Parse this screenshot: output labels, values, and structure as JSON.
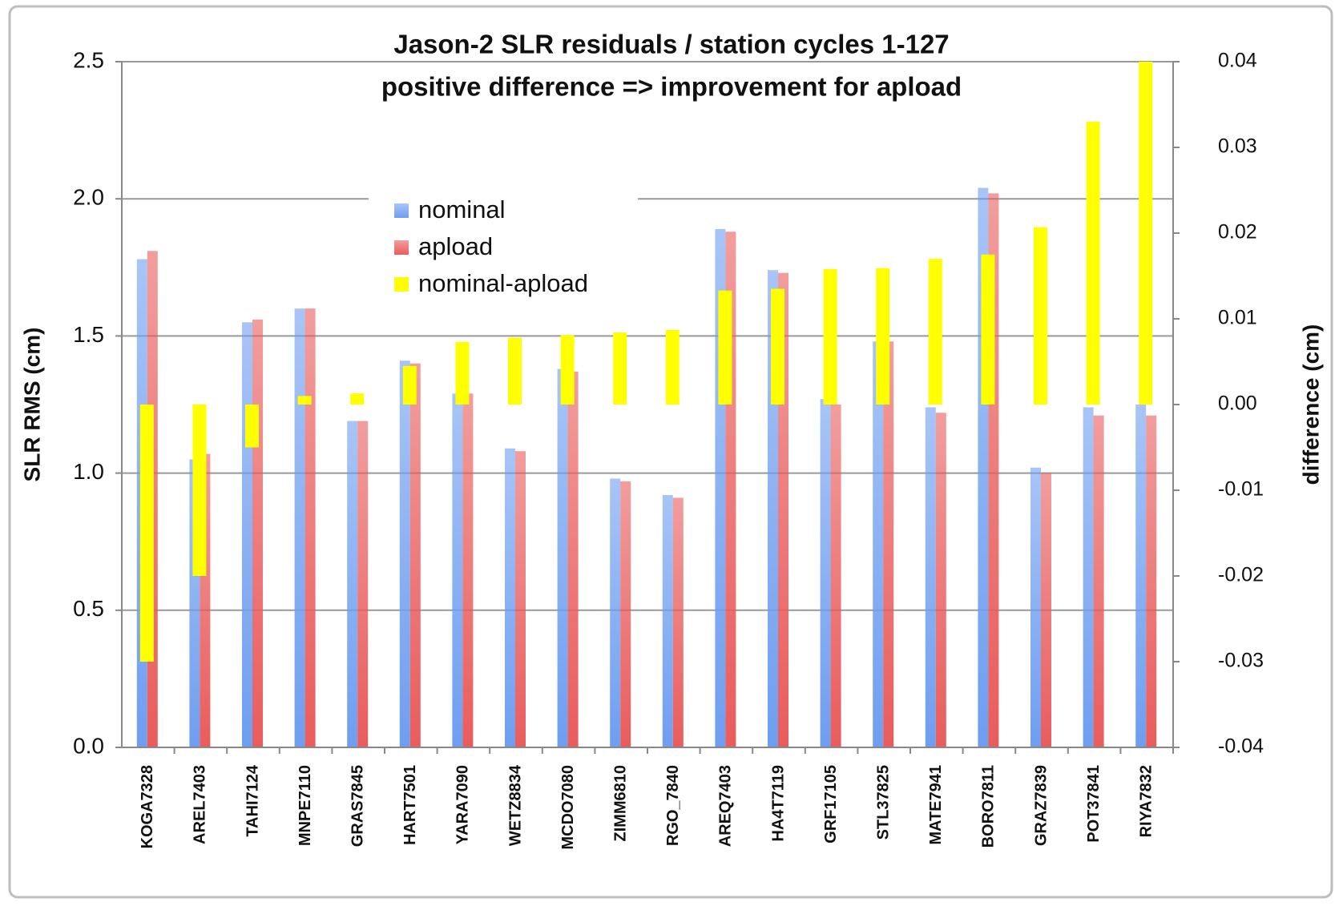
{
  "chart_data": {
    "type": "bar",
    "title": "Jason-2 SLR residuals / station  cycles 1-127",
    "subtitle": "positive difference => improvement for apload",
    "y_label": "SLR RMS (cm)",
    "y2_label": "difference (cm)",
    "categories": [
      "KOGA7328",
      "AREL7403",
      "TAHI7124",
      "MNPE7110",
      "GRAS7845",
      "HART7501",
      "YARA7090",
      "WETZ8834",
      "MCDO7080",
      "ZIMM6810",
      "RGO_7840",
      "AREQ7403",
      "HA4T7119",
      "GRF17105",
      "STL37825",
      "MATE7941",
      "BORO7811",
      "GRAZ7839",
      "POT37841",
      "RIYA7832"
    ],
    "series": [
      {
        "name": "nominal",
        "color": "#6f9ef0",
        "values": [
          1.78,
          1.05,
          1.55,
          1.6,
          1.19,
          1.41,
          1.29,
          1.09,
          1.38,
          0.98,
          0.92,
          1.89,
          1.74,
          1.27,
          1.48,
          1.24,
          2.04,
          1.02,
          1.24,
          1.25
        ]
      },
      {
        "name": "apload",
        "color": "#e95c5c",
        "values": [
          1.81,
          1.07,
          1.56,
          1.6,
          1.19,
          1.4,
          1.29,
          1.08,
          1.37,
          0.97,
          0.91,
          1.88,
          1.73,
          1.25,
          1.48,
          1.22,
          2.02,
          1.0,
          1.21,
          1.21
        ]
      },
      {
        "name": "nominal-apload",
        "color": "#ffff00",
        "axis": "y2",
        "values": [
          -0.03,
          -0.02,
          -0.005,
          0.001,
          0.0013,
          0.0045,
          0.0073,
          0.0078,
          0.0081,
          0.0084,
          0.0087,
          0.0133,
          0.0135,
          0.0158,
          0.0159,
          0.017,
          0.0175,
          0.0207,
          0.033,
          0.04
        ]
      }
    ],
    "ylim": [
      0,
      2.5
    ],
    "yticks": [
      {
        "value": 0,
        "label": "0.0"
      },
      0.5,
      {
        "value": 1,
        "label": "1.0"
      },
      1.5,
      {
        "value": 2,
        "label": "2.0"
      },
      2.5
    ],
    "y2lim": [
      -0.04,
      0.04
    ],
    "y2ticks": [
      -0.04,
      -0.03,
      -0.02,
      -0.01,
      {
        "value": 0,
        "label": "0.00"
      },
      0.01,
      0.02,
      0.03,
      0.04
    ],
    "y2_label_color": "#c9c900",
    "grid": true,
    "legend": "top-left"
  }
}
